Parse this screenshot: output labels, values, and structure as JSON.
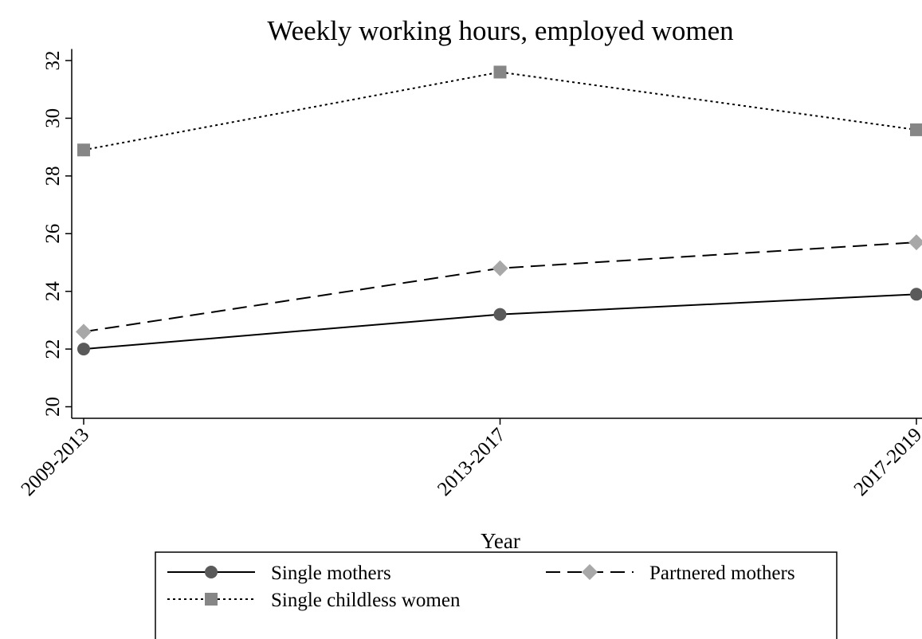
{
  "chart_data": {
    "type": "line",
    "title": "Weekly working hours, employed women",
    "x_label": "Year",
    "categories": [
      "2009-2013",
      "2013-2017",
      "2017-2019"
    ],
    "series": [
      {
        "name": "Single mothers",
        "color": "#5a5a5a",
        "marker": "circle",
        "dash": "solid",
        "values": [
          22.0,
          23.2,
          23.9
        ]
      },
      {
        "name": "Partnered mothers",
        "color": "#a8a8a8",
        "marker": "diamond",
        "dash": "dashed",
        "values": [
          22.6,
          24.8,
          25.7
        ]
      },
      {
        "name": "Single childless women",
        "color": "#868686",
        "marker": "square",
        "dash": "dotted",
        "values": [
          28.9,
          31.6,
          29.6
        ]
      }
    ],
    "ylim": [
      19.6,
      32.4
    ],
    "yticks": [
      20,
      22,
      24,
      26,
      28,
      30,
      32
    ]
  }
}
